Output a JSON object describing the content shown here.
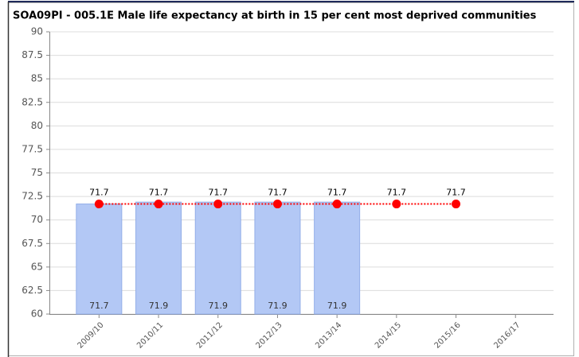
{
  "chart_data": {
    "type": "bar",
    "title": "SOA09PI - 005.1E Male life expectancy at birth in 15 per cent most deprived communities",
    "categories": [
      "2009/10",
      "2010/11",
      "2011/12",
      "2012/13",
      "2013/14",
      "2014/15",
      "2015/16",
      "2016/17"
    ],
    "series": [
      {
        "type": "bar",
        "color": "#b3c8f5",
        "values": [
          71.7,
          71.9,
          71.9,
          71.9,
          71.9,
          null,
          null,
          null
        ]
      },
      {
        "type": "line",
        "color": "#ff0000",
        "values": [
          71.7,
          71.7,
          71.7,
          71.7,
          71.7,
          71.7,
          71.7,
          null
        ]
      }
    ],
    "ylim": [
      60,
      90
    ],
    "yticks": [
      60,
      62.5,
      65,
      67.5,
      70,
      72.5,
      75,
      77.5,
      80,
      82.5,
      85,
      87.5,
      90
    ],
    "grid": true
  }
}
